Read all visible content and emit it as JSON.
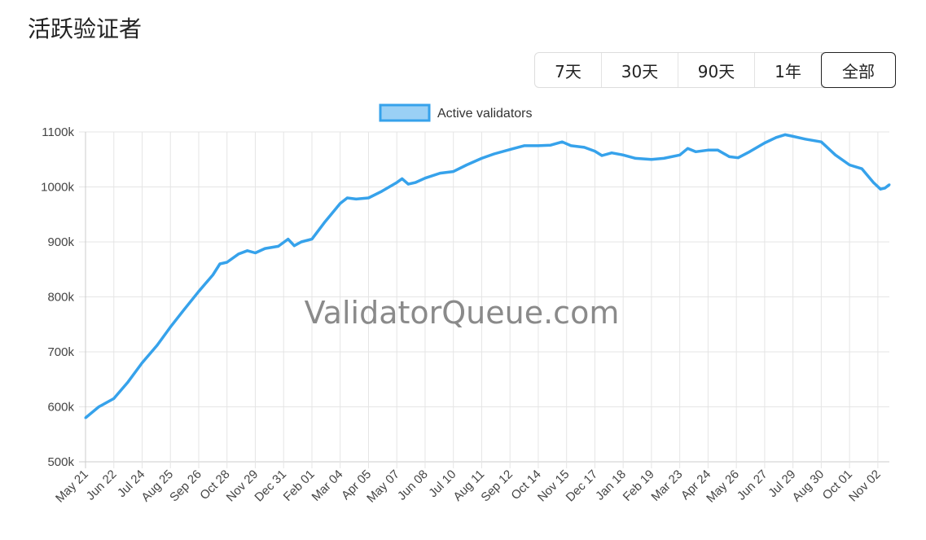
{
  "header": {
    "title": "活跃验证者"
  },
  "range_buttons": [
    {
      "label": "7天",
      "width": 82
    },
    {
      "label": "30天",
      "width": 94
    },
    {
      "label": "90天",
      "width": 94
    },
    {
      "label": "1年",
      "width": 82
    },
    {
      "label": "全部",
      "width": 92,
      "selected": true
    }
  ],
  "watermark": "ValidatorQueue.com",
  "chart_data": {
    "type": "line",
    "title": "",
    "legend": {
      "position": "top",
      "entries": [
        "Active validators"
      ]
    },
    "colors": {
      "line": "#36a2eb",
      "legend_fill": "#9ad0f5",
      "grid": "#e5e5e5"
    },
    "grid": true,
    "xlabel": "",
    "ylabel": "",
    "xlim": [
      "2023-05-21",
      "2025-11-15"
    ],
    "ylim": [
      500,
      1100
    ],
    "y_unit": "k",
    "y_ticks": [
      "500k",
      "600k",
      "700k",
      "800k",
      "900k",
      "1000k",
      "1100k"
    ],
    "x_ticks": [
      "May 21",
      "Jun 22",
      "Jul 24",
      "Aug 25",
      "Sep 26",
      "Oct 28",
      "Nov 29",
      "Dec 31",
      "Feb 01",
      "Mar 04",
      "Apr 05",
      "May 07",
      "Jun 08",
      "Jul 10",
      "Aug 11",
      "Sep 12",
      "Oct 14",
      "Nov 15",
      "Dec 17",
      "Jan 18",
      "Feb 19",
      "Mar 23",
      "Apr 24",
      "May 26",
      "Jun 27",
      "Jul 29",
      "Aug 30",
      "Oct 01",
      "Nov 02"
    ],
    "series": [
      {
        "name": "Active validators",
        "points": [
          [
            "2023-05-21",
            580
          ],
          [
            "2023-06-05",
            600
          ],
          [
            "2023-06-22",
            615
          ],
          [
            "2023-07-08",
            645
          ],
          [
            "2023-07-24",
            680
          ],
          [
            "2023-08-10",
            712
          ],
          [
            "2023-08-25",
            745
          ],
          [
            "2023-09-10",
            778
          ],
          [
            "2023-09-26",
            810
          ],
          [
            "2023-10-12",
            840
          ],
          [
            "2023-10-20",
            860
          ],
          [
            "2023-10-28",
            863
          ],
          [
            "2023-11-10",
            878
          ],
          [
            "2023-11-20",
            884
          ],
          [
            "2023-11-29",
            880
          ],
          [
            "2023-12-10",
            888
          ],
          [
            "2023-12-25",
            892
          ],
          [
            "2024-01-05",
            905
          ],
          [
            "2024-01-12",
            893
          ],
          [
            "2024-01-20",
            900
          ],
          [
            "2024-02-01",
            905
          ],
          [
            "2024-02-15",
            935
          ],
          [
            "2024-03-04",
            970
          ],
          [
            "2024-03-12",
            980
          ],
          [
            "2024-03-22",
            978
          ],
          [
            "2024-04-05",
            980
          ],
          [
            "2024-04-20",
            992
          ],
          [
            "2024-05-07",
            1008
          ],
          [
            "2024-05-13",
            1015
          ],
          [
            "2024-05-20",
            1005
          ],
          [
            "2024-05-28",
            1008
          ],
          [
            "2024-06-08",
            1016
          ],
          [
            "2024-06-25",
            1025
          ],
          [
            "2024-07-10",
            1028
          ],
          [
            "2024-07-25",
            1040
          ],
          [
            "2024-08-11",
            1052
          ],
          [
            "2024-08-25",
            1060
          ],
          [
            "2024-09-12",
            1068
          ],
          [
            "2024-09-28",
            1075
          ],
          [
            "2024-10-14",
            1075
          ],
          [
            "2024-10-28",
            1076
          ],
          [
            "2024-11-10",
            1082
          ],
          [
            "2024-11-20",
            1075
          ],
          [
            "2024-12-05",
            1072
          ],
          [
            "2024-12-17",
            1065
          ],
          [
            "2024-12-25",
            1057
          ],
          [
            "2025-01-05",
            1062
          ],
          [
            "2025-01-18",
            1058
          ],
          [
            "2025-02-01",
            1052
          ],
          [
            "2025-02-19",
            1050
          ],
          [
            "2025-03-05",
            1052
          ],
          [
            "2025-03-23",
            1058
          ],
          [
            "2025-04-01",
            1070
          ],
          [
            "2025-04-10",
            1064
          ],
          [
            "2025-04-24",
            1067
          ],
          [
            "2025-05-05",
            1067
          ],
          [
            "2025-05-18",
            1055
          ],
          [
            "2025-05-28",
            1053
          ],
          [
            "2025-06-10",
            1064
          ],
          [
            "2025-06-27",
            1080
          ],
          [
            "2025-07-10",
            1090
          ],
          [
            "2025-07-20",
            1095
          ],
          [
            "2025-07-29",
            1092
          ],
          [
            "2025-08-12",
            1087
          ],
          [
            "2025-08-30",
            1082
          ],
          [
            "2025-09-15",
            1058
          ],
          [
            "2025-10-01",
            1040
          ],
          [
            "2025-10-15",
            1033
          ],
          [
            "2025-10-28",
            1008
          ],
          [
            "2025-11-05",
            996
          ],
          [
            "2025-11-10",
            998
          ],
          [
            "2025-11-15",
            1004
          ]
        ]
      }
    ]
  }
}
